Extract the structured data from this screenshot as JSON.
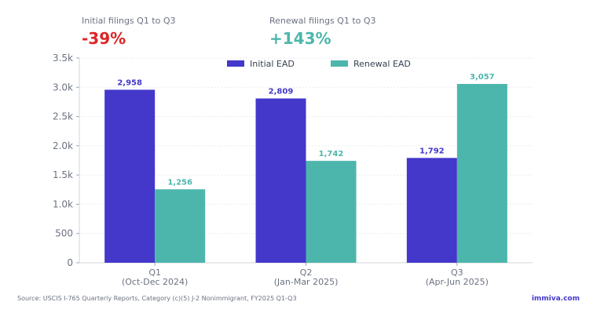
{
  "stats": {
    "initial": {
      "label": "Initial filings Q1 to Q3",
      "value": "-39%",
      "color": "#dc2626"
    },
    "renewal": {
      "label": "Renewal filings Q1 to Q3",
      "value": "+143%",
      "color": "#4db6ac"
    }
  },
  "chart_data": {
    "type": "bar",
    "categories": [
      {
        "line1": "Q1",
        "line2": "(Oct-Dec 2024)"
      },
      {
        "line1": "Q2",
        "line2": "(Jan-Mar 2025)"
      },
      {
        "line1": "Q3",
        "line2": "(Apr-Jun 2025)"
      }
    ],
    "series": [
      {
        "name": "Initial EAD",
        "values": [
          2958,
          2809,
          1792
        ],
        "labels": [
          "2,958",
          "2,809",
          "1,792"
        ],
        "color": "#4338ca"
      },
      {
        "name": "Renewal EAD",
        "values": [
          1256,
          1742,
          3057
        ],
        "labels": [
          "1,256",
          "1,742",
          "3,057"
        ],
        "color": "#4db6ac"
      }
    ],
    "ylim": [
      0,
      3500
    ],
    "yticks": [
      {
        "value": 0,
        "label": "0"
      },
      {
        "value": 500,
        "label": "500"
      },
      {
        "value": 1000,
        "label": "1.0k"
      },
      {
        "value": 1500,
        "label": "1.5k"
      },
      {
        "value": 2000,
        "label": "2.0k"
      },
      {
        "value": 2500,
        "label": "2.5k"
      },
      {
        "value": 3000,
        "label": "3.0k"
      },
      {
        "value": 3500,
        "label": "3.5k"
      }
    ],
    "legend_position": "top-center",
    "grid": true
  },
  "footer": {
    "source": "Source: USCIS I-765 Quarterly Reports, Category (c)(5) J-2 Nonimmigrant, FY2025 Q1-Q3",
    "brand": "immiva.com",
    "brand_color": "#4338ca"
  }
}
